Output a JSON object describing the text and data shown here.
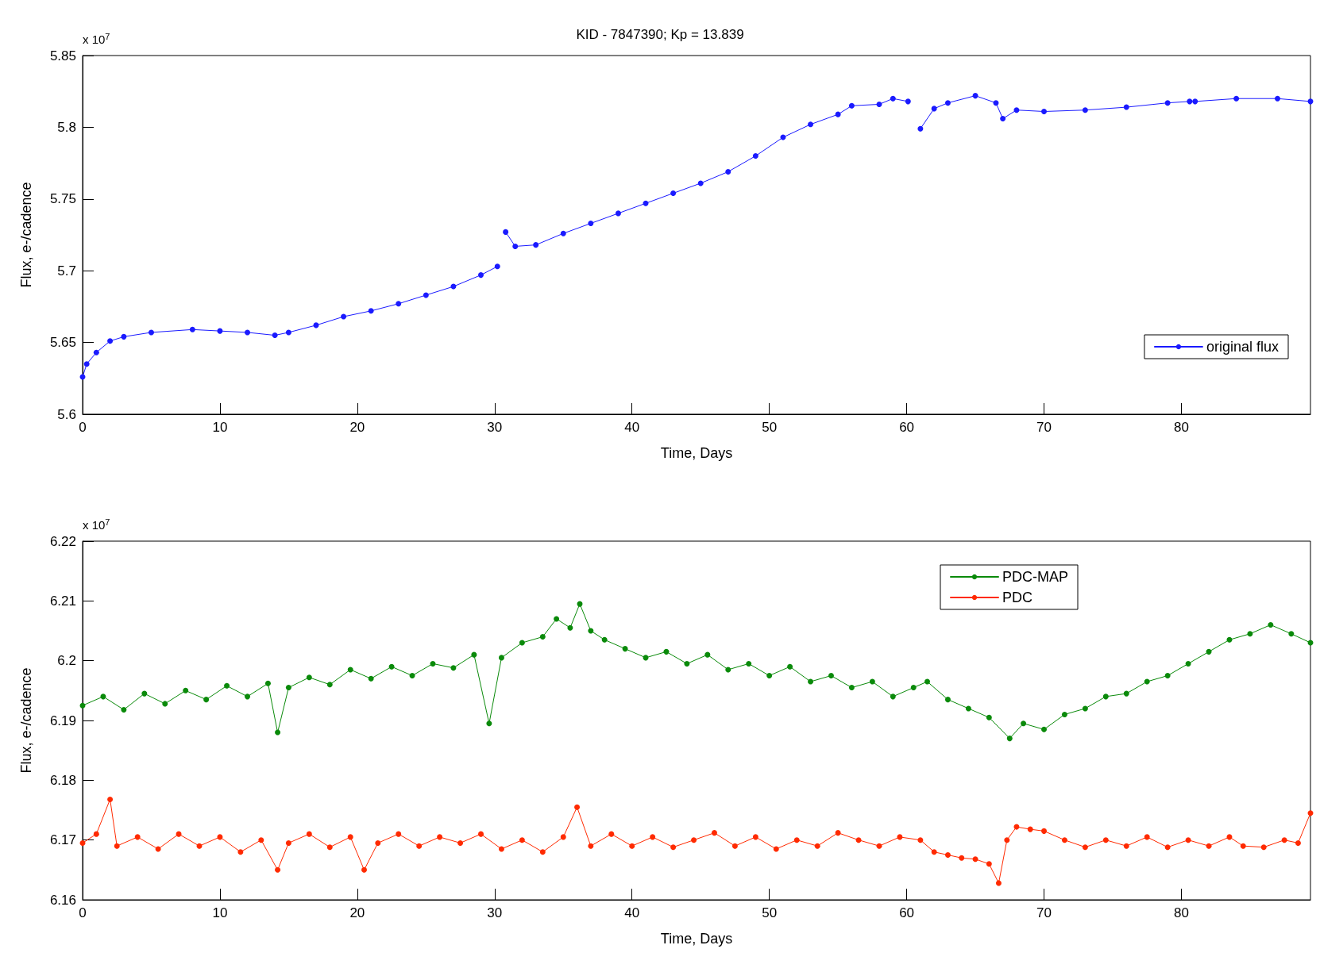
{
  "chart_data": [
    {
      "type": "line",
      "title": "KID - 7847390; Kp = 13.839",
      "xlabel": "Time, Days",
      "ylabel": "Flux, e-/cadence",
      "annotations": [
        "x 10$^{7}$"
      ],
      "xlim": [
        0,
        89.4
      ],
      "xticks": [
        0,
        10,
        20,
        30,
        40,
        50,
        60,
        70,
        80
      ],
      "ylim": [
        5.6,
        5.85
      ],
      "yticks": [
        5.6,
        5.65,
        5.7,
        5.75,
        5.8,
        5.85
      ],
      "grid": false,
      "legend": "bottom right",
      "marker": "circle",
      "line_style": "solid",
      "series": [
        {
          "name": "original flux",
          "color": "#1a1aff",
          "x": [
            0,
            0.3,
            1,
            2,
            3,
            5,
            8,
            10,
            12,
            14,
            15,
            17,
            19,
            21,
            23,
            25,
            27,
            29,
            30.2,
            30.5,
            30.8,
            31.5,
            33,
            35,
            37,
            39,
            41,
            43,
            45,
            47,
            49,
            51,
            53,
            55,
            56,
            58,
            59,
            60.1,
            60.5,
            61,
            62,
            63,
            65,
            66.5,
            67,
            68,
            70,
            73,
            76,
            79,
            80.6,
            81,
            84,
            87,
            89.4
          ],
          "values": [
            5.626,
            5.635,
            5.643,
            5.651,
            5.654,
            5.657,
            5.659,
            5.658,
            5.657,
            5.655,
            5.657,
            5.662,
            5.668,
            5.672,
            5.677,
            5.683,
            5.689,
            5.697,
            5.703,
            null,
            5.727,
            5.717,
            5.718,
            5.726,
            5.733,
            5.74,
            5.747,
            5.754,
            5.761,
            5.769,
            5.78,
            5.793,
            5.802,
            5.809,
            5.815,
            5.816,
            5.82,
            5.818,
            null,
            5.799,
            5.813,
            5.817,
            5.822,
            5.817,
            5.806,
            5.812,
            5.811,
            5.812,
            5.814,
            5.817,
            5.818,
            5.818,
            5.82,
            5.82,
            5.818
          ]
        }
      ]
    },
    {
      "type": "line",
      "xlabel": "Time, Days",
      "ylabel": "Flux, e-/cadence",
      "annotations": [
        "x 10$^{7}$"
      ],
      "xlim": [
        0,
        89.4
      ],
      "xticks": [
        0,
        10,
        20,
        30,
        40,
        50,
        60,
        70,
        80
      ],
      "ylim": [
        6.16,
        6.22
      ],
      "yticks": [
        6.16,
        6.17,
        6.18,
        6.19,
        6.2,
        6.21,
        6.22
      ],
      "grid": false,
      "legend": "top right",
      "marker": "circle",
      "line_style": "solid",
      "series": [
        {
          "name": "PDC-MAP",
          "color": "#0a8a0a",
          "x": [
            0,
            1.5,
            3,
            4.5,
            6,
            7.5,
            9,
            10.5,
            12,
            13.5,
            14.2,
            15,
            16.5,
            18,
            19.5,
            21,
            22.5,
            24,
            25.5,
            27,
            28.5,
            29.6,
            30.5,
            32,
            33.5,
            34.5,
            35.5,
            36.2,
            37,
            38,
            39.5,
            41,
            42.5,
            44,
            45.5,
            47,
            48.5,
            50,
            51.5,
            53,
            54.5,
            56,
            57.5,
            59,
            60.5,
            61.5,
            63,
            64.5,
            66,
            67.5,
            68.5,
            70,
            71.5,
            73,
            74.5,
            76,
            77.5,
            79,
            80.5,
            82,
            83.5,
            85,
            86.5,
            88,
            89.4
          ],
          "values": [
            6.1925,
            6.194,
            6.1918,
            6.1945,
            6.1928,
            6.195,
            6.1935,
            6.1958,
            6.194,
            6.1962,
            6.188,
            6.1955,
            6.1972,
            6.196,
            6.1985,
            6.197,
            6.199,
            6.1975,
            6.1995,
            6.1988,
            6.201,
            6.1895,
            6.2005,
            6.203,
            6.204,
            6.207,
            6.2055,
            6.2095,
            6.205,
            6.2035,
            6.202,
            6.2005,
            6.2015,
            6.1995,
            6.201,
            6.1985,
            6.1995,
            6.1975,
            6.199,
            6.1965,
            6.1975,
            6.1955,
            6.1965,
            6.194,
            6.1955,
            6.1965,
            6.1935,
            6.192,
            6.1905,
            6.187,
            6.1895,
            6.1885,
            6.191,
            6.192,
            6.194,
            6.1945,
            6.1965,
            6.1975,
            6.1995,
            6.2015,
            6.2035,
            6.2045,
            6.206,
            6.2045,
            6.203
          ]
        },
        {
          "name": "PDC",
          "color": "#ff2a00",
          "x": [
            0,
            1,
            2,
            2.5,
            4,
            5.5,
            7,
            8.5,
            10,
            11.5,
            13,
            14.2,
            15,
            16.5,
            18,
            19.5,
            20.5,
            21.5,
            23,
            24.5,
            26,
            27.5,
            29,
            30.5,
            32,
            33.5,
            35,
            36,
            37,
            38.5,
            40,
            41.5,
            43,
            44.5,
            46,
            47.5,
            49,
            50.5,
            52,
            53.5,
            55,
            56.5,
            58,
            59.5,
            61,
            62,
            63,
            64,
            65,
            66,
            66.7,
            67.3,
            68,
            69,
            70,
            71.5,
            73,
            74.5,
            76,
            77.5,
            79,
            80.5,
            82,
            83.5,
            84.5,
            86,
            87.5,
            88.5,
            89.4
          ],
          "values": [
            6.1695,
            6.171,
            6.1768,
            6.169,
            6.1705,
            6.1685,
            6.171,
            6.169,
            6.1705,
            6.168,
            6.17,
            6.165,
            6.1695,
            6.171,
            6.1688,
            6.1705,
            6.165,
            6.1695,
            6.171,
            6.169,
            6.1705,
            6.1695,
            6.171,
            6.1685,
            6.17,
            6.168,
            6.1705,
            6.1755,
            6.169,
            6.171,
            6.169,
            6.1705,
            6.1688,
            6.17,
            6.1712,
            6.169,
            6.1705,
            6.1685,
            6.17,
            6.169,
            6.1712,
            6.17,
            6.169,
            6.1705,
            6.17,
            6.168,
            6.1675,
            6.167,
            6.1668,
            6.166,
            6.1628,
            6.17,
            6.1722,
            6.1718,
            6.1715,
            6.17,
            6.1688,
            6.17,
            6.169,
            6.1705,
            6.1688,
            6.17,
            6.169,
            6.1705,
            6.169,
            6.1688,
            6.17,
            6.1695,
            6.1745
          ]
        }
      ]
    }
  ]
}
